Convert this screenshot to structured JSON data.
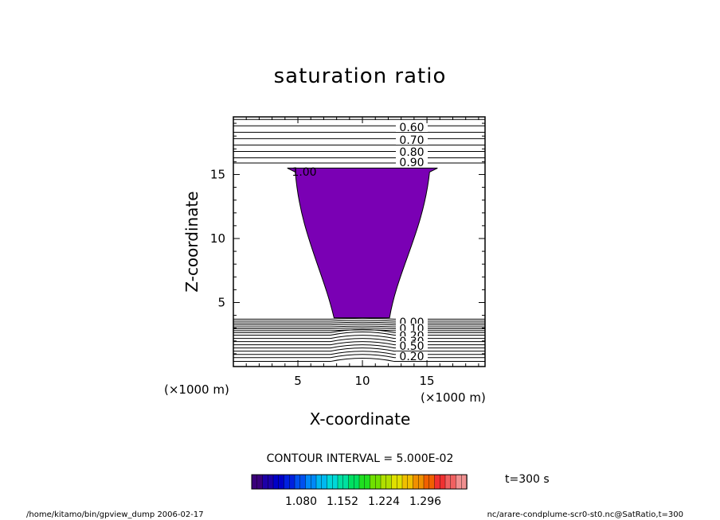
{
  "chart_data": {
    "type": "contour",
    "title": "saturation ratio",
    "xlabel": "X-coordinate",
    "ylabel": "Z-coordinate",
    "x_unit": "(×1000 m)",
    "y_unit": "(×1000 m)",
    "xlim": [
      0,
      19.5
    ],
    "ylim": [
      0,
      19.5
    ],
    "x_ticks": [
      5,
      10,
      15
    ],
    "y_ticks": [
      5,
      10,
      15
    ],
    "contour_interval_text": "CONTOUR INTERVAL = 5.000E-02",
    "upper_contour_levels": [
      0.6,
      0.7,
      0.8,
      0.9,
      1.0
    ],
    "upper_contour_labels": [
      "0.60",
      "0.70",
      "0.80",
      "0.90",
      "1.00"
    ],
    "upper_line_z": [
      19.3,
      18.8,
      18.3,
      17.8,
      17.3,
      16.8,
      16.3,
      15.9
    ],
    "lower_contour_labels": [
      "0.00",
      "0.10",
      "0.20",
      "0.30",
      "0.50",
      "0.20"
    ],
    "lower_line_z": [
      3.7,
      3.55,
      3.4,
      3.25,
      3.1,
      2.95,
      2.8,
      2.65,
      2.45,
      2.2,
      1.95,
      1.7,
      1.45,
      1.2,
      0.95,
      0.7,
      0.4
    ],
    "shaded_region": {
      "level_range": "> 1.00",
      "z_top": 15.5,
      "z_bottom": 3.8,
      "x_left_top": 4.8,
      "x_right_top": 15.2,
      "x_left_bottom": 7.8,
      "x_right_bottom": 12.1,
      "color": "#7a00b4"
    },
    "colorbar": {
      "tick_labels": [
        "1.080",
        "1.152",
        "1.224",
        "1.296"
      ],
      "colors": [
        "#3a007a",
        "#1c00a8",
        "#0000c8",
        "#0020e0",
        "#0050f0",
        "#0088f8",
        "#00b8f0",
        "#00d8d8",
        "#00e0a0",
        "#00e060",
        "#20e020",
        "#70e000",
        "#b0e000",
        "#e0e000",
        "#f0c000",
        "#f09000",
        "#f06000",
        "#f03030",
        "#f06060",
        "#f09090"
      ]
    },
    "time_label": "t=300 s",
    "footer_left": "/home/kitamo/bin/gpview_dump  2006-02-17",
    "footer_right": "nc/arare-condplume-scr0-st0.nc@SatRatio,t=300"
  }
}
